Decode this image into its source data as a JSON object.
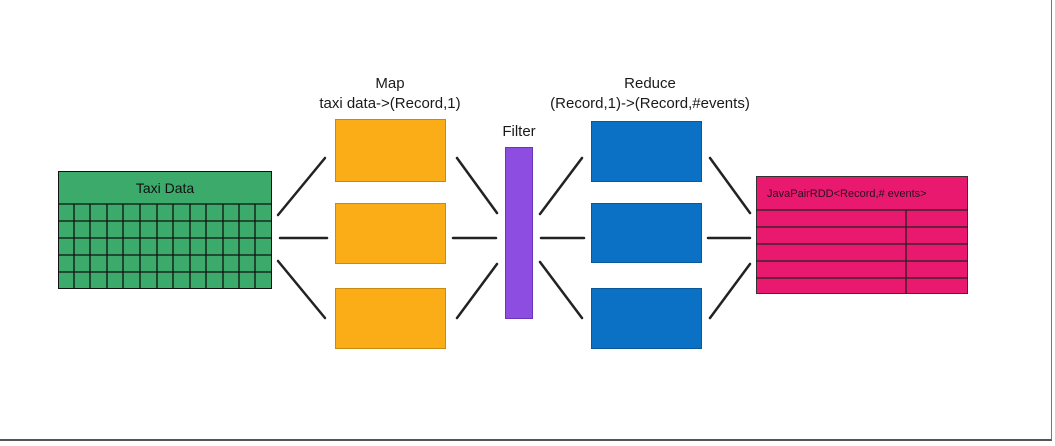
{
  "map": {
    "title": "Map",
    "subtitle": "taxi data->(Record,1)"
  },
  "filter": {
    "title": "Filter"
  },
  "reduce": {
    "title": "Reduce",
    "subtitle": "(Record,1)->(Record,#events)"
  },
  "taxi_data": {
    "title": "Taxi Data"
  },
  "result": {
    "title": "JavaPairRDD<Record,# events>"
  },
  "colors": {
    "taxi_table": "#3BAA6B",
    "map_box": "#FBAD18",
    "filter_bar": "#8C4DE0",
    "reduce_box": "#0B71C4",
    "result_table": "#E8196E",
    "connector": "#222222"
  }
}
